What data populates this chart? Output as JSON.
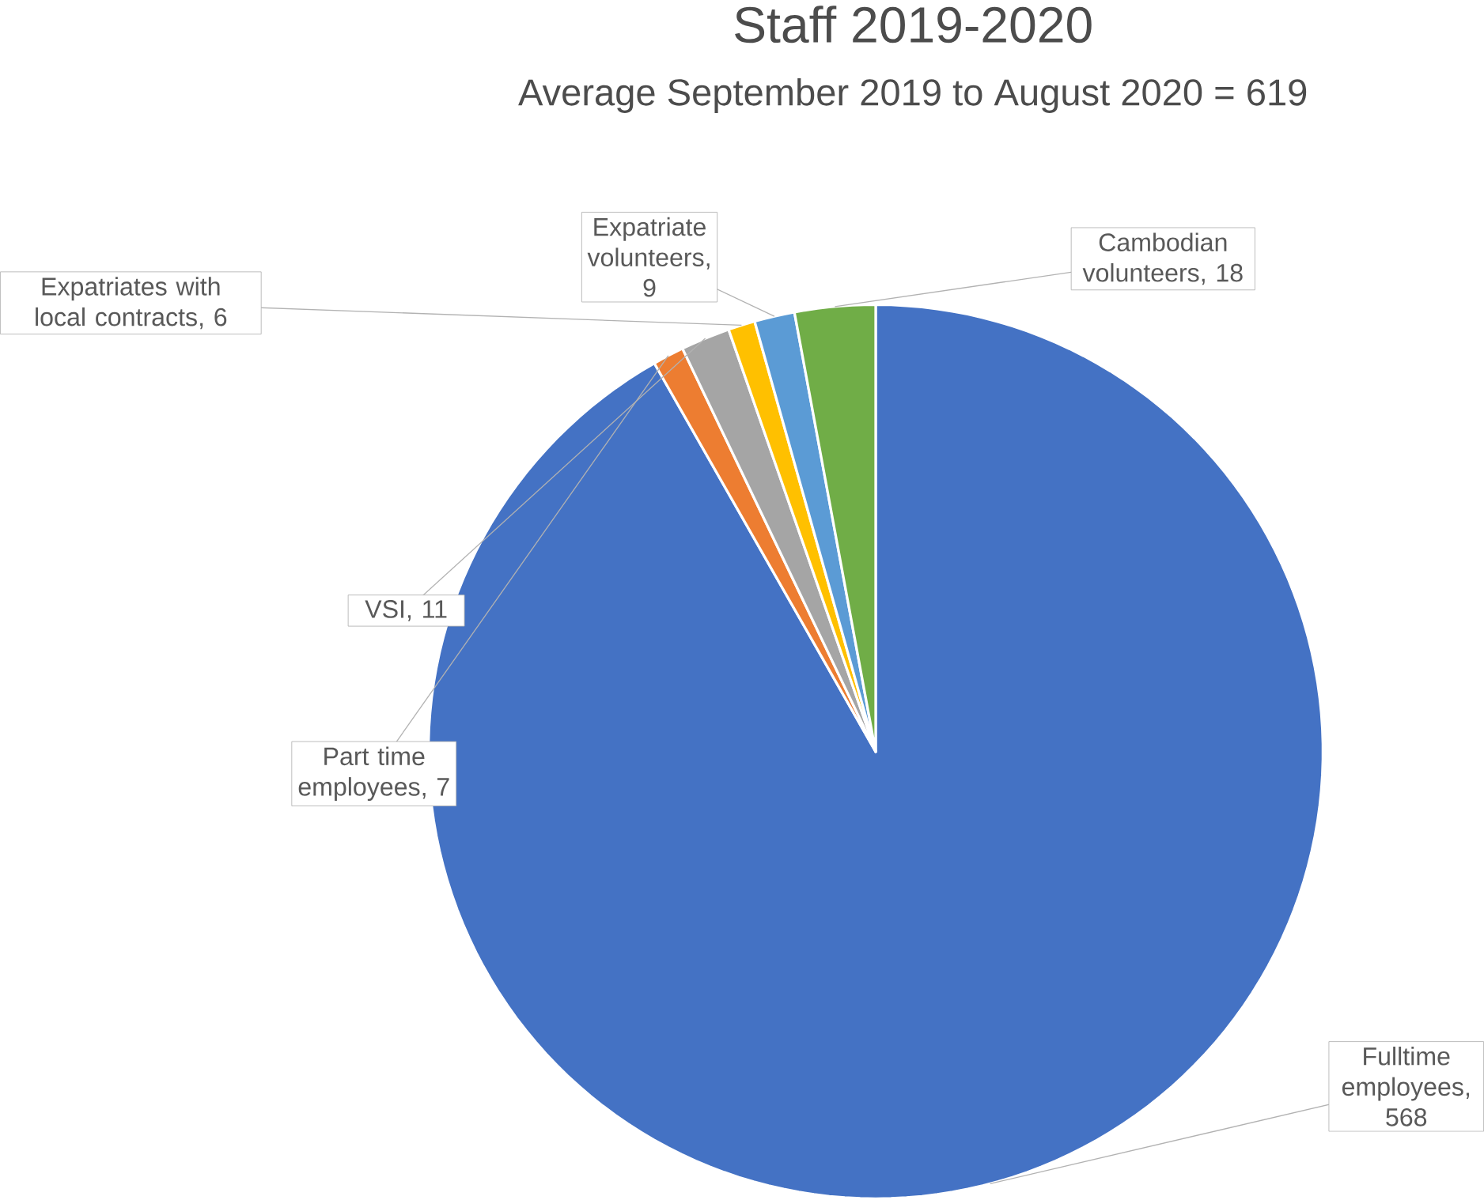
{
  "chart_data": {
    "type": "pie",
    "title": "Staff 2019-2020",
    "subtitle": "Average September 2019 to August 2020 = 619",
    "categories": [
      "Fulltime employees",
      "Part time employees",
      "VSI",
      "Expatriates with local contracts",
      "Expatriate volunteers",
      "Cambodian volunteers"
    ],
    "values": [
      568,
      7,
      11,
      6,
      9,
      18
    ],
    "colors": [
      "#4472c4",
      "#ed7d31",
      "#a5a5a5",
      "#ffc000",
      "#5b9bd5",
      "#70ad47"
    ],
    "value_labels": [
      ", 568",
      ", 7",
      ", 11",
      ", 6",
      ", 9",
      ", 18"
    ]
  }
}
